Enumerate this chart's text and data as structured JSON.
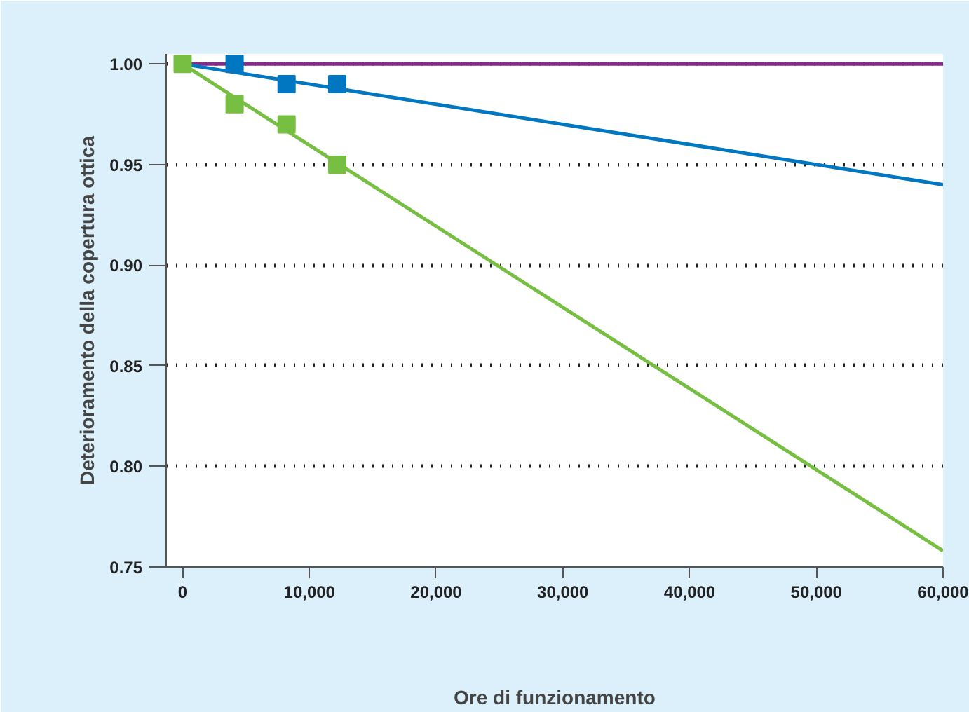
{
  "chart_data": {
    "type": "line",
    "xlabel": "Ore di funzionamento",
    "ylabel": "Deterioramento della copertura ottica",
    "xlim": [
      -1300,
      60000
    ],
    "ylim": [
      0.75,
      1.005
    ],
    "xticks": [
      {
        "value": 0,
        "label": "0"
      },
      {
        "value": 10000,
        "label": "10,000"
      },
      {
        "value": 20000,
        "label": "20,000"
      },
      {
        "value": 30000,
        "label": "30,000"
      },
      {
        "value": 40000,
        "label": "40,000"
      },
      {
        "value": 50000,
        "label": "50,000"
      },
      {
        "value": 60000,
        "label": "60,000"
      }
    ],
    "yticks": [
      {
        "value": 0.75,
        "label": "0.75"
      },
      {
        "value": 0.8,
        "label": "0.80"
      },
      {
        "value": 0.85,
        "label": "0.85"
      },
      {
        "value": 0.9,
        "label": "0.90"
      },
      {
        "value": 0.95,
        "label": "0.95"
      },
      {
        "value": 1.0,
        "label": "1.00"
      }
    ],
    "grid": "y",
    "line_style": "solid",
    "series": [
      {
        "color": "#8b2a8e",
        "marker": "none",
        "x": [
          0,
          60000
        ],
        "values": [
          1.0,
          1.0
        ]
      },
      {
        "color": "#0077c0",
        "marker": "none",
        "x": [
          0,
          60000
        ],
        "values": [
          1.0,
          0.94
        ]
      },
      {
        "color": "#77bf43",
        "marker": "none",
        "x": [
          0,
          60000
        ],
        "values": [
          1.0,
          0.758
        ]
      },
      {
        "type": "scatter",
        "marker": "square",
        "color": "#0077c0",
        "x": [
          4100,
          8200,
          12200
        ],
        "values": [
          1.0,
          0.99,
          0.99
        ]
      },
      {
        "type": "scatter",
        "marker": "square",
        "color": "#77bf43",
        "x": [
          0,
          4100,
          8200,
          12200
        ],
        "values": [
          1.0,
          0.98,
          0.97,
          0.95
        ]
      }
    ]
  }
}
